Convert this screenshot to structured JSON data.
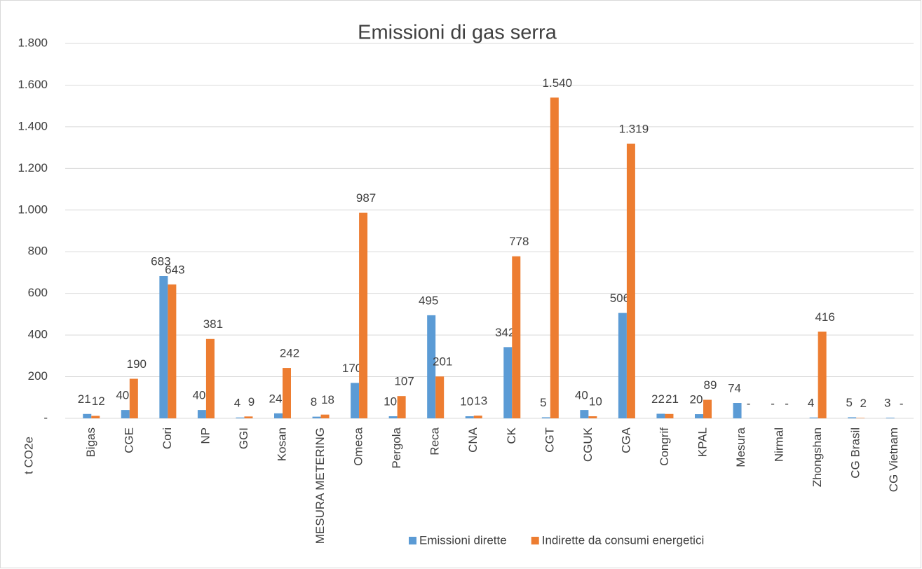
{
  "chart_data": {
    "type": "bar",
    "title": "Emissioni di gas serra",
    "y_label": "t CO2e",
    "categories": [
      "Bigas",
      "CGE",
      "Cori",
      "NP",
      "GGI",
      "Kosan",
      "MESURA METERING",
      "Omeca",
      "Pergola",
      "Reca",
      "CNA",
      "CK",
      "CGT",
      "CGUK",
      "CGA",
      "Congrif",
      "KPAL",
      "Mesura",
      "Nirmal",
      "Zhongshan",
      "CG Brasil",
      "CG Vietnam"
    ],
    "series": [
      {
        "name": "Emissioni dirette",
        "color": "#5b9bd5",
        "values": [
          21,
          40,
          683,
          40,
          4,
          24,
          8,
          170,
          10,
          495,
          10,
          342,
          5,
          40,
          506,
          22,
          20,
          74,
          0,
          4,
          5,
          3
        ],
        "value_labels": [
          "21",
          "40",
          "683",
          "40",
          "4",
          "24",
          "8",
          "170",
          "10",
          "495",
          "10",
          "342",
          "5",
          "40",
          "506",
          "22",
          "20",
          "74",
          "-",
          "4",
          "5",
          "3"
        ]
      },
      {
        "name": "Indirette da consumi energetici",
        "color": "#ed7d31",
        "values": [
          12,
          190,
          643,
          381,
          9,
          242,
          18,
          987,
          107,
          201,
          13,
          778,
          1540,
          10,
          1319,
          21,
          89,
          0,
          0,
          416,
          2,
          0
        ],
        "value_labels": [
          "12",
          "190",
          "643",
          "381",
          "9",
          "242",
          "18",
          "987",
          "107",
          "201",
          "13",
          "778",
          "1.540",
          "10",
          "1.319",
          "21",
          "89",
          "-",
          "-",
          "416",
          "2",
          "-"
        ]
      }
    ],
    "ylim": [
      0,
      1800
    ],
    "yticks": [
      {
        "value": 0,
        "label": "-"
      },
      200,
      400,
      600,
      800,
      {
        "value": 1000,
        "label": "1.000"
      },
      {
        "value": 1200,
        "label": "1.200"
      },
      {
        "value": 1400,
        "label": "1.400"
      },
      {
        "value": 1600,
        "label": "1.600"
      },
      {
        "value": 1800,
        "label": "1.800"
      }
    ],
    "grid": true,
    "legend": "bottom"
  }
}
